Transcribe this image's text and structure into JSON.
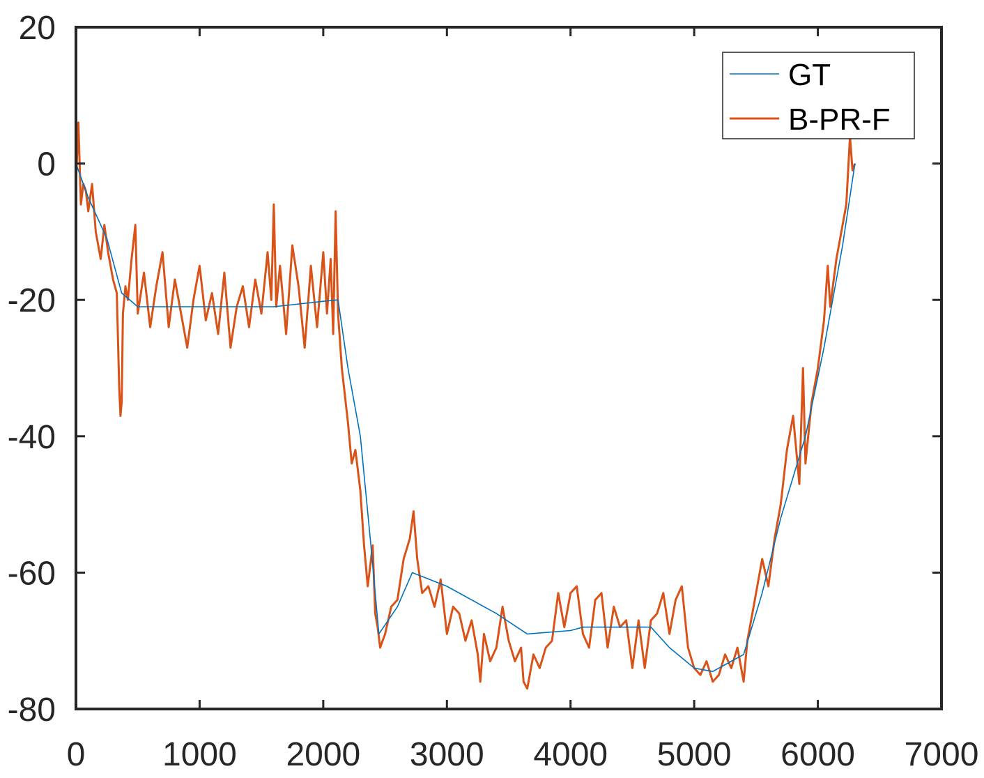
{
  "chart_data": {
    "type": "line",
    "title": "",
    "xlabel": "",
    "ylabel": "",
    "xlim": [
      0,
      7000
    ],
    "ylim": [
      -80,
      20
    ],
    "x_ticks": [
      0,
      1000,
      2000,
      3000,
      4000,
      5000,
      6000,
      7000
    ],
    "y_ticks": [
      20,
      0,
      -20,
      -40,
      -60,
      -80
    ],
    "x_tick_labels": [
      "0",
      "1000",
      "2000",
      "3000",
      "4000",
      "5000",
      "6000",
      "7000"
    ],
    "y_tick_labels": [
      "20",
      "0",
      "-20",
      "-40",
      "-60",
      "-80"
    ],
    "grid": false,
    "legend_position": "top-right",
    "series": [
      {
        "name": "GT",
        "color": "#0072BD",
        "x": [
          0,
          100,
          250,
          370,
          500,
          800,
          1200,
          1600,
          2000,
          2120,
          2200,
          2300,
          2380,
          2450,
          2600,
          2720,
          3000,
          3400,
          3650,
          4000,
          4100,
          4300,
          4500,
          4650,
          4800,
          5000,
          5150,
          5300,
          5400,
          5550,
          5700,
          5900,
          6050,
          6200,
          6300
        ],
        "values": [
          0,
          -5,
          -11,
          -19,
          -21,
          -21,
          -21,
          -21,
          -20.2,
          -20,
          -30,
          -40,
          -55,
          -69,
          -65,
          -60,
          -62,
          -66,
          -69,
          -68.5,
          -68,
          -68,
          -68,
          -68,
          -71,
          -74,
          -74.5,
          -73,
          -72,
          -63,
          -52,
          -40,
          -27,
          -12,
          0
        ]
      },
      {
        "name": "B-PR-F",
        "color": "#D95319",
        "x": [
          0,
          20,
          40,
          60,
          80,
          100,
          130,
          160,
          200,
          230,
          260,
          300,
          330,
          350,
          360,
          370,
          380,
          400,
          420,
          450,
          480,
          500,
          550,
          600,
          650,
          700,
          750,
          800,
          850,
          900,
          950,
          1000,
          1050,
          1100,
          1150,
          1200,
          1250,
          1300,
          1350,
          1400,
          1450,
          1500,
          1550,
          1580,
          1600,
          1620,
          1650,
          1700,
          1750,
          1800,
          1850,
          1900,
          1950,
          2000,
          2030,
          2060,
          2080,
          2100,
          2120,
          2150,
          2200,
          2230,
          2260,
          2300,
          2330,
          2360,
          2400,
          2420,
          2440,
          2460,
          2480,
          2500,
          2550,
          2600,
          2650,
          2700,
          2730,
          2760,
          2800,
          2850,
          2900,
          2950,
          3000,
          3050,
          3100,
          3150,
          3200,
          3250,
          3270,
          3300,
          3350,
          3400,
          3450,
          3500,
          3550,
          3600,
          3620,
          3650,
          3700,
          3750,
          3800,
          3850,
          3900,
          3950,
          4000,
          4050,
          4100,
          4150,
          4200,
          4250,
          4300,
          4350,
          4400,
          4450,
          4500,
          4550,
          4600,
          4650,
          4700,
          4750,
          4800,
          4850,
          4900,
          4950,
          5000,
          5050,
          5100,
          5150,
          5200,
          5250,
          5300,
          5350,
          5400,
          5430,
          5460,
          5500,
          5550,
          5600,
          5650,
          5700,
          5750,
          5800,
          5850,
          5880,
          5900,
          5950,
          6000,
          6050,
          6080,
          6100,
          6150,
          6200,
          6230,
          6260,
          6280,
          6300
        ],
        "values": [
          -3,
          6,
          -6,
          -3,
          -4,
          -7,
          -3,
          -10,
          -14,
          -9,
          -13,
          -17,
          -19,
          -33,
          -37,
          -35,
          -22,
          -18,
          -20,
          -14,
          -9,
          -22,
          -16,
          -24,
          -18,
          -13,
          -24,
          -17,
          -22,
          -27,
          -20,
          -15,
          -23,
          -19,
          -25,
          -16,
          -27,
          -21,
          -18,
          -24,
          -17,
          -22,
          -13,
          -20,
          -6,
          -21,
          -15,
          -25,
          -12,
          -18,
          -27,
          -15,
          -24,
          -13,
          -22,
          -14,
          -25,
          -7,
          -22,
          -30,
          -38,
          -44,
          -42,
          -48,
          -56,
          -62,
          -56,
          -66,
          -68,
          -71,
          -70,
          -69,
          -65,
          -64,
          -58,
          -55,
          -51,
          -58,
          -63,
          -62,
          -65,
          -61,
          -69,
          -65,
          -66,
          -70,
          -67,
          -72,
          -76,
          -69,
          -73,
          -71,
          -65,
          -70,
          -73,
          -71,
          -76,
          -77,
          -72,
          -74,
          -71,
          -70,
          -63,
          -68,
          -63,
          -62,
          -69,
          -71,
          -64,
          -63,
          -71,
          -65,
          -68,
          -67,
          -74,
          -67,
          -74,
          -67,
          -66,
          -63,
          -69,
          -64,
          -62,
          -71,
          -74,
          -75,
          -73,
          -76,
          -75,
          -72,
          -74,
          -71,
          -76,
          -70,
          -67,
          -63,
          -58,
          -62,
          -55,
          -50,
          -42,
          -37,
          -47,
          -30,
          -44,
          -35,
          -30,
          -23,
          -15,
          -21,
          -14,
          -9,
          -6,
          4,
          -1,
          0
        ]
      }
    ]
  }
}
